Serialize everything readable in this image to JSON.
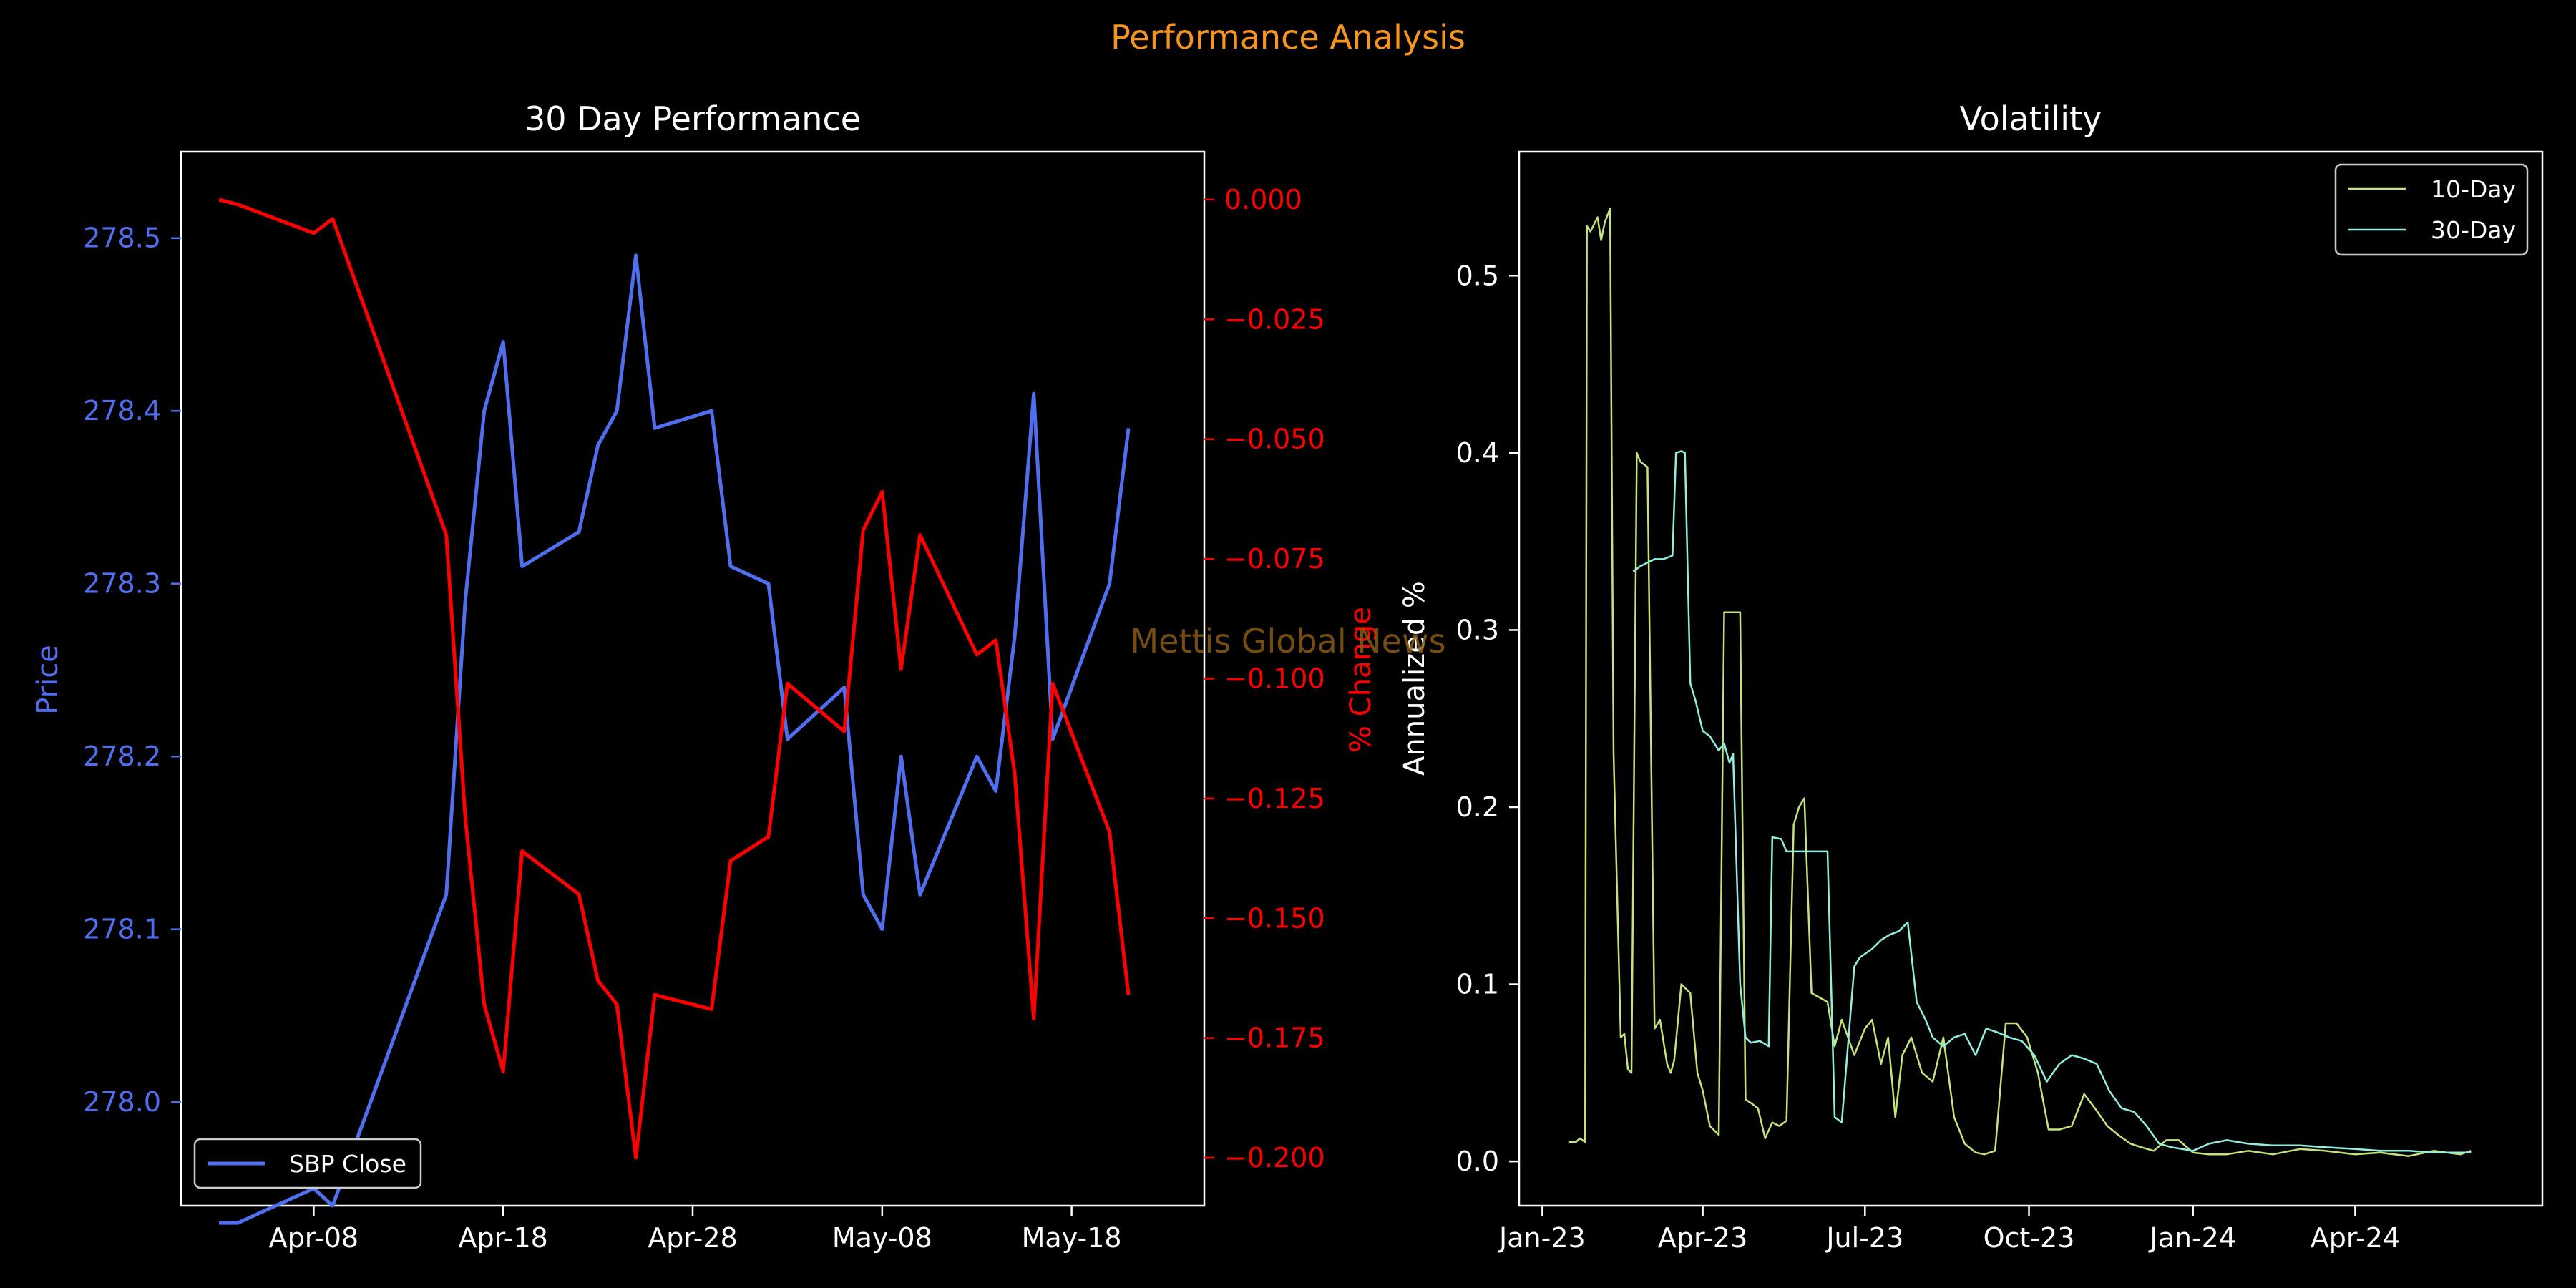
{
  "figure": {
    "suptitle": "Performance Analysis",
    "suptitle_color": "#f7941d",
    "background": "#000000",
    "watermark": "Mettis Global News",
    "watermark_color": "#8a5a14"
  },
  "chart_data": [
    {
      "type": "line",
      "title": "30 Day Performance",
      "xlabel": "",
      "ylabel": "Price",
      "y2label": "% Change",
      "x_tick_labels": [
        "Apr-08",
        "Apr-18",
        "Apr-28",
        "May-08",
        "May-18"
      ],
      "ylim": [
        277.94,
        278.55
      ],
      "y2lim": [
        -0.21,
        0.01
      ],
      "y_ticks": [
        278.0,
        278.1,
        278.2,
        278.3,
        278.4,
        278.5
      ],
      "y_tick_labels": [
        "278.0",
        "278.1",
        "278.2",
        "278.3",
        "278.4",
        "278.5"
      ],
      "y2_ticks": [
        0,
        -0.025,
        -0.05,
        -0.075,
        -0.1,
        -0.125,
        -0.15,
        -0.175,
        -0.2
      ],
      "y2_tick_labels": [
        "0.000",
        "−0.025",
        "−0.050",
        "−0.075",
        "−0.100",
        "−0.125",
        "−0.150",
        "−0.175",
        "−0.200"
      ],
      "xlim": [
        "2024-04-01",
        "2024-05-25"
      ],
      "x_tick_dates": [
        "2024-04-08",
        "2024-04-18",
        "2024-04-28",
        "2024-05-08",
        "2024-05-18"
      ],
      "legend": "lower-left",
      "series": [
        {
          "name": "SBP Close",
          "axis": "left",
          "color": "#4f6ef0",
          "x": [
            "2024-04-03",
            "2024-04-04",
            "2024-04-08",
            "2024-04-09",
            "2024-04-15",
            "2024-04-16",
            "2024-04-17",
            "2024-04-18",
            "2024-04-19",
            "2024-04-22",
            "2024-04-23",
            "2024-04-24",
            "2024-04-25",
            "2024-04-26",
            "2024-04-29",
            "2024-04-30",
            "2024-05-02",
            "2024-05-03",
            "2024-05-06",
            "2024-05-07",
            "2024-05-08",
            "2024-05-09",
            "2024-05-10",
            "2024-05-13",
            "2024-05-14",
            "2024-05-15",
            "2024-05-16",
            "2024-05-17",
            "2024-05-20",
            "2024-05-21"
          ],
          "values": [
            277.93,
            277.93,
            277.95,
            277.94,
            278.12,
            278.29,
            278.4,
            278.44,
            278.31,
            278.33,
            278.38,
            278.4,
            278.49,
            278.39,
            278.4,
            278.31,
            278.3,
            278.21,
            278.24,
            278.12,
            278.1,
            278.2,
            278.12,
            278.2,
            278.18,
            278.27,
            278.41,
            278.21,
            278.3,
            278.39
          ]
        },
        {
          "name": "% Change",
          "axis": "right",
          "color": "#ff0000",
          "x": [
            "2024-04-03",
            "2024-04-04",
            "2024-04-08",
            "2024-04-09",
            "2024-04-15",
            "2024-04-16",
            "2024-04-17",
            "2024-04-18",
            "2024-04-19",
            "2024-04-22",
            "2024-04-23",
            "2024-04-24",
            "2024-04-25",
            "2024-04-26",
            "2024-04-29",
            "2024-04-30",
            "2024-05-02",
            "2024-05-03",
            "2024-05-06",
            "2024-05-07",
            "2024-05-08",
            "2024-05-09",
            "2024-05-10",
            "2024-05-13",
            "2024-05-14",
            "2024-05-15",
            "2024-05-16",
            "2024-05-17",
            "2024-05-20",
            "2024-05-21"
          ],
          "values": [
            0.0,
            -0.001,
            -0.007,
            -0.004,
            -0.07,
            -0.129,
            -0.168,
            -0.182,
            -0.136,
            -0.145,
            -0.163,
            -0.168,
            -0.2,
            -0.166,
            -0.169,
            -0.138,
            -0.133,
            -0.101,
            -0.111,
            -0.069,
            -0.061,
            -0.098,
            -0.07,
            -0.095,
            -0.092,
            -0.12,
            -0.171,
            -0.101,
            -0.132,
            -0.166
          ]
        }
      ]
    },
    {
      "type": "line",
      "title": "Volatility",
      "xlabel": "",
      "ylabel": "Annualized %",
      "xlim": [
        "2022-12-19",
        "2024-07-15"
      ],
      "x_tick_dates": [
        "2023-01-01",
        "2023-04-01",
        "2023-07-01",
        "2023-10-01",
        "2024-01-01",
        "2024-04-01"
      ],
      "x_tick_labels": [
        "Jan-23",
        "Apr-23",
        "Jul-23",
        "Oct-23",
        "Jan-24",
        "Apr-24"
      ],
      "ylim": [
        -0.025,
        0.57
      ],
      "y_ticks": [
        0.0,
        0.1,
        0.2,
        0.3,
        0.4,
        0.5
      ],
      "y_tick_labels": [
        "0.0",
        "0.1",
        "0.2",
        "0.3",
        "0.4",
        "0.5"
      ],
      "legend": "top-right",
      "series": [
        {
          "name": "10-Day",
          "color": "#c4e37a",
          "x": [
            "2023-01-16",
            "2023-01-20",
            "2023-01-22",
            "2023-01-25",
            "2023-01-26",
            "2023-01-28",
            "2023-02-01",
            "2023-02-03",
            "2023-02-05",
            "2023-02-08",
            "2023-02-10",
            "2023-02-12",
            "2023-02-14",
            "2023-02-16",
            "2023-02-18",
            "2023-02-20",
            "2023-02-23",
            "2023-02-25",
            "2023-03-01",
            "2023-03-05",
            "2023-03-08",
            "2023-03-12",
            "2023-03-14",
            "2023-03-16",
            "2023-03-20",
            "2023-03-25",
            "2023-03-29",
            "2023-04-01",
            "2023-04-05",
            "2023-04-10",
            "2023-04-13",
            "2023-04-18",
            "2023-04-22",
            "2023-04-25",
            "2023-04-28",
            "2023-05-02",
            "2023-05-06",
            "2023-05-10",
            "2023-05-14",
            "2023-05-18",
            "2023-05-22",
            "2023-05-25",
            "2023-05-28",
            "2023-06-01",
            "2023-06-10",
            "2023-06-14",
            "2023-06-18",
            "2023-06-25",
            "2023-07-01",
            "2023-07-05",
            "2023-07-10",
            "2023-07-14",
            "2023-07-18",
            "2023-07-22",
            "2023-07-27",
            "2023-08-02",
            "2023-08-08",
            "2023-08-14",
            "2023-08-20",
            "2023-08-26",
            "2023-09-01",
            "2023-09-06",
            "2023-09-12",
            "2023-09-18",
            "2023-09-24",
            "2023-09-30",
            "2023-10-06",
            "2023-10-12",
            "2023-10-18",
            "2023-10-25",
            "2023-11-01",
            "2023-11-07",
            "2023-11-14",
            "2023-11-20",
            "2023-11-27",
            "2023-12-03",
            "2023-12-10",
            "2023-12-17",
            "2023-12-24",
            "2024-01-01",
            "2024-01-10",
            "2024-01-20",
            "2024-02-01",
            "2024-02-15",
            "2024-03-01",
            "2024-03-15",
            "2024-04-01",
            "2024-04-15",
            "2024-05-01",
            "2024-05-15",
            "2024-05-30",
            "2024-06-05"
          ],
          "values": [
            0.011,
            0.011,
            0.013,
            0.011,
            0.528,
            0.525,
            0.533,
            0.52,
            0.53,
            0.538,
            0.23,
            0.15,
            0.07,
            0.072,
            0.052,
            0.05,
            0.4,
            0.395,
            0.392,
            0.075,
            0.08,
            0.055,
            0.05,
            0.057,
            0.1,
            0.095,
            0.05,
            0.04,
            0.02,
            0.015,
            0.31,
            0.31,
            0.31,
            0.035,
            0.033,
            0.03,
            0.013,
            0.022,
            0.02,
            0.023,
            0.19,
            0.2,
            0.205,
            0.095,
            0.09,
            0.065,
            0.08,
            0.06,
            0.075,
            0.08,
            0.055,
            0.07,
            0.025,
            0.06,
            0.07,
            0.05,
            0.045,
            0.07,
            0.025,
            0.01,
            0.005,
            0.004,
            0.006,
            0.078,
            0.078,
            0.07,
            0.05,
            0.018,
            0.018,
            0.02,
            0.038,
            0.03,
            0.02,
            0.015,
            0.01,
            0.008,
            0.006,
            0.012,
            0.012,
            0.005,
            0.004,
            0.004,
            0.006,
            0.004,
            0.007,
            0.006,
            0.004,
            0.005,
            0.003,
            0.006,
            0.004,
            0.006
          ]
        },
        {
          "name": "30-Day",
          "color": "#8ff0e0",
          "x": [
            "2023-02-21",
            "2023-02-25",
            "2023-03-01",
            "2023-03-05",
            "2023-03-10",
            "2023-03-15",
            "2023-03-17",
            "2023-03-20",
            "2023-03-22",
            "2023-03-25",
            "2023-03-28",
            "2023-04-01",
            "2023-04-05",
            "2023-04-10",
            "2023-04-13",
            "2023-04-16",
            "2023-04-18",
            "2023-04-22",
            "2023-04-25",
            "2023-04-28",
            "2023-05-03",
            "2023-05-08",
            "2023-05-10",
            "2023-05-15",
            "2023-05-18",
            "2023-06-10",
            "2023-06-14",
            "2023-06-18",
            "2023-06-25",
            "2023-06-28",
            "2023-07-05",
            "2023-07-10",
            "2023-07-15",
            "2023-07-20",
            "2023-07-25",
            "2023-07-30",
            "2023-08-04",
            "2023-08-08",
            "2023-08-14",
            "2023-08-20",
            "2023-08-26",
            "2023-09-01",
            "2023-09-07",
            "2023-09-13",
            "2023-09-20",
            "2023-09-27",
            "2023-10-04",
            "2023-10-11",
            "2023-10-18",
            "2023-10-25",
            "2023-11-01",
            "2023-11-08",
            "2023-11-15",
            "2023-11-22",
            "2023-11-29",
            "2023-12-06",
            "2023-12-13",
            "2023-12-20",
            "2024-01-01",
            "2024-01-10",
            "2024-01-20",
            "2024-02-01",
            "2024-02-15",
            "2024-03-01",
            "2024-03-15",
            "2024-04-01",
            "2024-04-15",
            "2024-05-01",
            "2024-05-15",
            "2024-06-05"
          ],
          "values": [
            0.333,
            0.336,
            0.338,
            0.34,
            0.34,
            0.342,
            0.4,
            0.401,
            0.4,
            0.27,
            0.26,
            0.243,
            0.24,
            0.232,
            0.236,
            0.225,
            0.23,
            0.1,
            0.07,
            0.067,
            0.068,
            0.065,
            0.183,
            0.182,
            0.175,
            0.175,
            0.025,
            0.022,
            0.11,
            0.115,
            0.12,
            0.125,
            0.128,
            0.13,
            0.135,
            0.09,
            0.08,
            0.07,
            0.065,
            0.07,
            0.072,
            0.06,
            0.075,
            0.073,
            0.07,
            0.068,
            0.06,
            0.045,
            0.055,
            0.06,
            0.058,
            0.055,
            0.04,
            0.03,
            0.028,
            0.02,
            0.01,
            0.008,
            0.006,
            0.01,
            0.012,
            0.01,
            0.009,
            0.009,
            0.008,
            0.007,
            0.006,
            0.006,
            0.005,
            0.005
          ]
        }
      ]
    }
  ]
}
